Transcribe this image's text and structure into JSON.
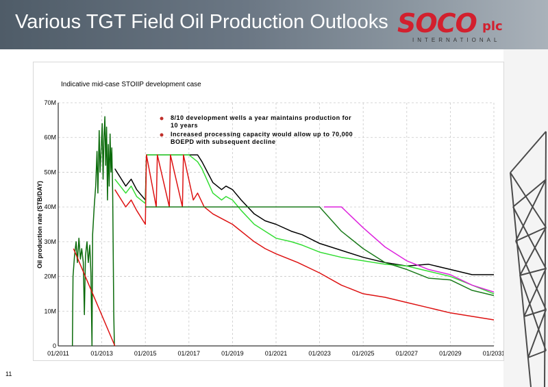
{
  "slide": {
    "title": "Various TGT Field Oil Production Outlooks",
    "page_number": "11",
    "logo": {
      "main": "SOCO",
      "suffix": "plc",
      "subtitle": "INTERNATIONAL"
    },
    "accent_color": "#d2202e"
  },
  "chart_data": {
    "type": "line",
    "title": "Indicative mid-case STOIIP development case",
    "xlabel": "",
    "ylabel": "Oil production rate (STB/DAY)",
    "xlim": [
      2011.0,
      2031.0
    ],
    "ylim": [
      0,
      70
    ],
    "y_unit": "M",
    "x_ticks": [
      "01/2011",
      "01/2013",
      "01/2015",
      "01/2017",
      "01/2019",
      "01/2021",
      "01/2023",
      "01/2025",
      "01/2027",
      "01/2029",
      "01/2031"
    ],
    "y_ticks": [
      "0",
      "10M",
      "20M",
      "30M",
      "40M",
      "50M",
      "60M",
      "70M"
    ],
    "grid": true,
    "annotations": [
      "8/10 development wells a year maintains production for 10 years",
      "Increased processing capacity would allow up to 70,000 BOEPD with subsequent decline"
    ],
    "series": [
      {
        "color": "#000000",
        "points": [
          [
            2013.6,
            51
          ],
          [
            2014.1,
            46
          ],
          [
            2014.35,
            48
          ],
          [
            2014.6,
            45
          ],
          [
            2015.0,
            42
          ],
          [
            2015.05,
            55
          ],
          [
            2017.0,
            55
          ],
          [
            2017.4,
            55
          ],
          [
            2017.6,
            53
          ],
          [
            2018.1,
            47
          ],
          [
            2018.5,
            45
          ],
          [
            2018.7,
            46
          ],
          [
            2019.0,
            45
          ],
          [
            2019.4,
            42
          ],
          [
            2020.0,
            38
          ],
          [
            2020.5,
            36
          ],
          [
            2021.0,
            35
          ],
          [
            2021.7,
            33
          ],
          [
            2022.2,
            32
          ],
          [
            2023.0,
            29.5
          ],
          [
            2024.0,
            27.5
          ],
          [
            2025.0,
            25.5
          ],
          [
            2026.0,
            24
          ],
          [
            2027.0,
            23
          ],
          [
            2028.0,
            23.5
          ],
          [
            2029.0,
            22
          ],
          [
            2030.0,
            20.5
          ],
          [
            2031.0,
            20.5
          ]
        ]
      },
      {
        "color": "#33dd33",
        "points": [
          [
            2013.6,
            48
          ],
          [
            2014.1,
            44
          ],
          [
            2014.35,
            46
          ],
          [
            2014.6,
            43
          ],
          [
            2015.0,
            41
          ],
          [
            2015.05,
            55
          ],
          [
            2017.0,
            55
          ],
          [
            2017.4,
            53
          ],
          [
            2017.6,
            51
          ],
          [
            2018.1,
            44
          ],
          [
            2018.5,
            42
          ],
          [
            2018.7,
            43
          ],
          [
            2019.0,
            42
          ],
          [
            2019.4,
            39
          ],
          [
            2020.0,
            35
          ],
          [
            2020.5,
            33
          ],
          [
            2021.0,
            31
          ],
          [
            2021.7,
            30
          ],
          [
            2022.2,
            29
          ],
          [
            2023.0,
            27
          ],
          [
            2024.0,
            25.5
          ],
          [
            2025.0,
            24.5
          ],
          [
            2026.0,
            23.5
          ],
          [
            2027.0,
            23
          ],
          [
            2028.0,
            21.5
          ],
          [
            2029.0,
            20
          ],
          [
            2030.0,
            17.5
          ],
          [
            2031.0,
            15
          ]
        ]
      },
      {
        "color": "#dd1111",
        "points": [
          [
            2013.6,
            45
          ],
          [
            2014.1,
            40
          ],
          [
            2014.35,
            42
          ],
          [
            2014.6,
            39
          ],
          [
            2015.0,
            35
          ],
          [
            2015.05,
            55
          ],
          [
            2015.5,
            40
          ],
          [
            2015.55,
            55
          ],
          [
            2016.1,
            40
          ],
          [
            2016.15,
            55
          ],
          [
            2016.7,
            40
          ],
          [
            2016.75,
            55
          ],
          [
            2017.2,
            42
          ],
          [
            2017.4,
            44
          ],
          [
            2017.7,
            40
          ],
          [
            2018.1,
            38
          ],
          [
            2018.7,
            36
          ],
          [
            2019.0,
            35
          ],
          [
            2020.0,
            30
          ],
          [
            2020.5,
            28
          ],
          [
            2021.0,
            26.5
          ],
          [
            2022.0,
            24
          ],
          [
            2023.0,
            21
          ],
          [
            2024.0,
            17.5
          ],
          [
            2025.0,
            15
          ],
          [
            2026.0,
            14
          ],
          [
            2027.0,
            12.5
          ],
          [
            2028.0,
            11
          ],
          [
            2029.0,
            9.5
          ],
          [
            2030.0,
            8.5
          ],
          [
            2031.0,
            7.5
          ]
        ]
      },
      {
        "color": "#1a7a1a",
        "points": [
          [
            2015.0,
            40
          ],
          [
            2023.0,
            40
          ],
          [
            2024.0,
            33
          ],
          [
            2025.0,
            28
          ],
          [
            2026.0,
            24
          ],
          [
            2027.0,
            22
          ],
          [
            2028.0,
            19.5
          ],
          [
            2029.0,
            19
          ],
          [
            2030.0,
            16
          ],
          [
            2031.0,
            14.5
          ]
        ]
      },
      {
        "color": "#dd22dd",
        "points": [
          [
            2023.2,
            40
          ],
          [
            2024.0,
            40
          ],
          [
            2025.0,
            34
          ],
          [
            2026.0,
            28.5
          ],
          [
            2027.0,
            24.5
          ],
          [
            2028.0,
            22
          ],
          [
            2029.0,
            20.5
          ],
          [
            2030.0,
            17.5
          ],
          [
            2031.0,
            15.5
          ]
        ]
      },
      {
        "color": "#0a6a0a",
        "points": [
          [
            2011.65,
            0
          ],
          [
            2011.68,
            20
          ],
          [
            2011.75,
            26
          ],
          [
            2011.82,
            30
          ],
          [
            2011.88,
            24
          ],
          [
            2011.95,
            31
          ],
          [
            2012.02,
            25
          ],
          [
            2012.08,
            28
          ],
          [
            2012.15,
            24
          ],
          [
            2012.2,
            9
          ],
          [
            2012.25,
            26
          ],
          [
            2012.32,
            30
          ],
          [
            2012.38,
            24
          ],
          [
            2012.45,
            29
          ],
          [
            2012.5,
            21
          ],
          [
            2012.55,
            0
          ],
          [
            2012.58,
            32
          ],
          [
            2012.65,
            40
          ],
          [
            2012.72,
            46
          ],
          [
            2012.78,
            56
          ],
          [
            2012.82,
            44
          ],
          [
            2012.88,
            62
          ],
          [
            2012.92,
            50
          ],
          [
            2012.98,
            58
          ],
          [
            2013.02,
            64
          ],
          [
            2013.06,
            48
          ],
          [
            2013.1,
            60
          ],
          [
            2013.14,
            66
          ],
          [
            2013.18,
            52
          ],
          [
            2013.22,
            63
          ],
          [
            2013.26,
            42
          ],
          [
            2013.3,
            58
          ],
          [
            2013.34,
            46
          ],
          [
            2013.38,
            61
          ],
          [
            2013.42,
            50
          ],
          [
            2013.46,
            57
          ],
          [
            2013.5,
            44
          ],
          [
            2013.55,
            9
          ],
          [
            2013.58,
            0
          ]
        ]
      },
      {
        "color": "#dd1111",
        "points": [
          [
            2011.7,
            28
          ],
          [
            2013.6,
            0
          ]
        ]
      }
    ]
  }
}
